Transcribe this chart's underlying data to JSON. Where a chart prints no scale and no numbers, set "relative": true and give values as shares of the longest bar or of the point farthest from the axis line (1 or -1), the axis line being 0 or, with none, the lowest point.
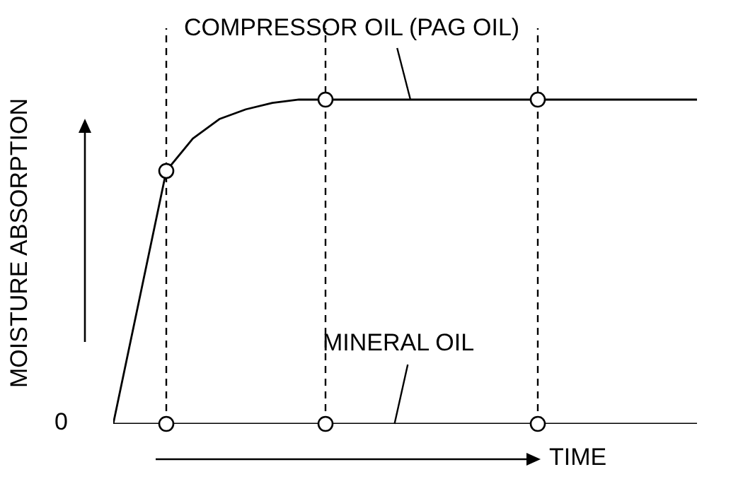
{
  "chart_data": {
    "type": "line",
    "xlabel": "TIME",
    "ylabel": "MOISTURE ABSORPTION",
    "relative": true,
    "line_style": "solid",
    "categories": [
      null,
      null,
      null,
      null,
      null,
      null,
      null,
      null,
      null,
      null,
      null,
      null,
      null,
      null,
      null,
      null,
      null,
      null,
      null,
      null,
      null,
      null,
      null
    ],
    "series": [
      {
        "name": "COMPRESSOR OIL (PAG OIL)",
        "color": "#000000",
        "values": [
          0,
          0.39,
          0.78,
          0.88,
          0.94,
          0.97,
          0.99,
          1,
          1,
          1,
          1,
          1,
          1,
          1,
          1,
          1,
          1,
          1,
          1,
          1,
          1,
          1,
          1
        ]
      },
      {
        "name": "MINERAL OIL",
        "color": "#000000",
        "values": [
          0,
          0,
          0,
          0,
          0,
          0,
          0,
          0,
          0,
          0,
          0,
          0,
          0,
          0,
          0,
          0,
          0,
          0,
          0,
          0,
          0,
          0,
          0
        ]
      }
    ],
    "annotations": [
      "0"
    ]
  }
}
